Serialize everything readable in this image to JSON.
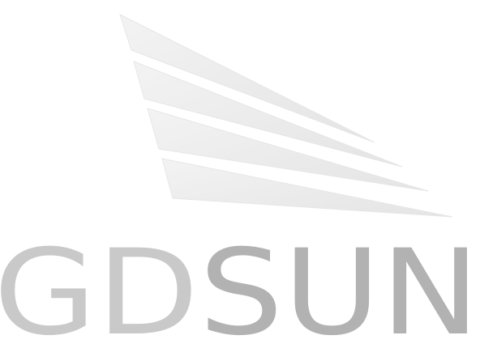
{
  "logo": {
    "wordmark": "GDSUN",
    "wordmark_parts": [
      "G",
      "D",
      "S",
      "U",
      "N"
    ],
    "colors": {
      "stripe_fill": "#ececec",
      "stripe_edge": "#e2e2e2",
      "letter_light": "#c9c9c9",
      "letter_dark": "#b2b2b2",
      "background": "#ffffff"
    }
  }
}
